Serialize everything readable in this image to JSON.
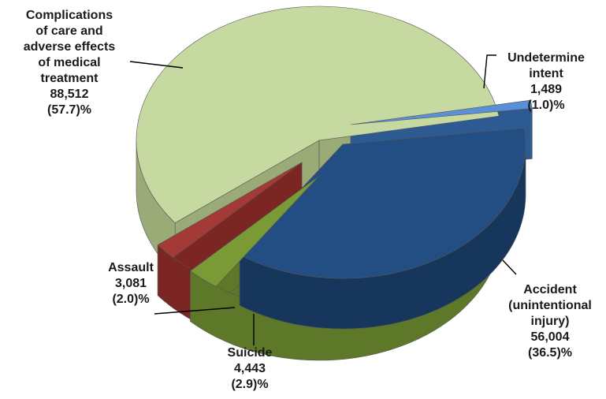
{
  "chart_data": {
    "type": "pie",
    "style": "3d-exploded",
    "slices": [
      {
        "lines": [
          "Complications",
          "of care and",
          "adverse effects",
          "of medical",
          "treatment"
        ],
        "value": 88512,
        "value_text": "88,512",
        "pct_text": "(57.7)%",
        "pct": 57.7,
        "top_color": "#c5d9a0",
        "side_color": "#9aab78"
      },
      {
        "lines": [
          "Undetermine",
          "intent"
        ],
        "value": 1489,
        "value_text": "1,489",
        "pct_text": "(1.0)%",
        "pct": 1.0,
        "top_color": "#5a90d8",
        "side_color": "#2e5a94"
      },
      {
        "lines": [
          "Accident",
          "(unintentional",
          "injury)"
        ],
        "value": 56004,
        "value_text": "56,004",
        "pct_text": "(36.5)%",
        "pct": 36.5,
        "top_color": "#234e84",
        "side_color": "#17365c"
      },
      {
        "lines": [
          "Suicide"
        ],
        "value": 4443,
        "value_text": "4,443",
        "pct_text": "(2.9)%",
        "pct": 2.9,
        "top_color": "#7a9a36",
        "side_color": "#5d7828"
      },
      {
        "lines": [
          "Assault"
        ],
        "value": 3081,
        "value_text": "3,081",
        "pct_text": "(2.0)%",
        "pct": 2.0,
        "top_color": "#a33a36",
        "side_color": "#7c2623"
      }
    ]
  }
}
